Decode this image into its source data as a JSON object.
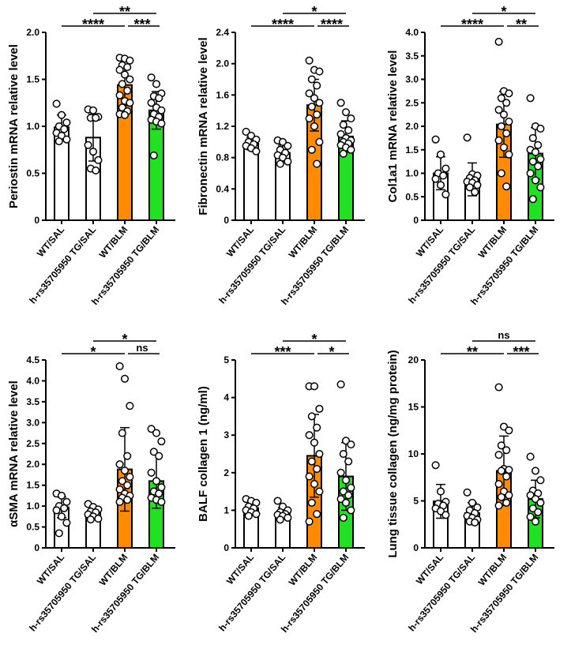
{
  "chart_data": [
    {
      "type": "bar",
      "ylabel": "Periostin mRNA relative level",
      "ylim": [
        0,
        2.0
      ],
      "ticks": [
        "0",
        "0.5",
        "1.0",
        "1.5",
        "2.0"
      ],
      "categories": [
        "WT/SAL",
        "h-rs35705950 TG/SAL",
        "WT/BLM",
        "h-rs35705950 TG/BLM"
      ],
      "means": [
        0.99,
        0.88,
        1.44,
        1.17
      ],
      "sd": [
        0.13,
        0.25,
        0.22,
        0.2
      ],
      "points": [
        [
          1.24,
          1.12,
          1.04,
          1.0,
          0.97,
          0.93,
          0.9,
          0.86,
          0.84
        ],
        [
          1.18,
          1.17,
          1.1,
          1.09,
          1.09,
          0.8,
          0.73,
          0.64,
          0.55,
          0.53
        ],
        [
          1.73,
          1.72,
          1.7,
          1.65,
          1.63,
          1.6,
          1.55,
          1.5,
          1.45,
          1.38,
          1.33,
          1.27,
          1.25,
          1.2,
          1.16,
          1.13,
          1.12
        ],
        [
          1.52,
          1.45,
          1.35,
          1.32,
          1.3,
          1.25,
          1.2,
          1.17,
          1.13,
          1.1,
          1.07,
          1.05,
          1.03,
          0.69
        ]
      ],
      "significance": [
        {
          "from": 0,
          "to": 2,
          "label": "****"
        },
        {
          "from": 2,
          "to": 3,
          "label": "***"
        },
        {
          "from": 1,
          "to": 3,
          "label": "**"
        }
      ]
    },
    {
      "type": "bar",
      "ylabel": "Fibronectin mRNA relative level",
      "ylim": [
        0,
        2.4
      ],
      "ticks": [
        "0",
        "0.4",
        "0.8",
        "1.2",
        "1.6",
        "2.0",
        "2.4"
      ],
      "categories": [
        "WT/SAL",
        "h-rs35705950 TG/SAL",
        "WT/BLM",
        "h-rs35705950 TG/BLM"
      ],
      "means": [
        0.98,
        0.86,
        1.47,
        1.07
      ],
      "sd": [
        0.08,
        0.1,
        0.33,
        0.2
      ],
      "points": [
        [
          1.13,
          1.08,
          1.03,
          1.0,
          0.97,
          0.95,
          0.92,
          0.88
        ],
        [
          1.02,
          1.0,
          0.95,
          0.9,
          0.86,
          0.83,
          0.8,
          0.75,
          0.72
        ],
        [
          2.04,
          1.92,
          1.9,
          1.8,
          1.72,
          1.62,
          1.56,
          1.5,
          1.45,
          1.35,
          1.3,
          1.2,
          1.0,
          0.9,
          0.72
        ],
        [
          1.5,
          1.38,
          1.3,
          1.22,
          1.15,
          1.1,
          1.05,
          1.02,
          1.0,
          0.98,
          0.96,
          0.93,
          0.9,
          0.85
        ]
      ],
      "significance": [
        {
          "from": 0,
          "to": 2,
          "label": "****"
        },
        {
          "from": 2,
          "to": 3,
          "label": "****"
        },
        {
          "from": 1,
          "to": 3,
          "label": "*"
        }
      ]
    },
    {
      "type": "bar",
      "ylabel": "Col1a1 mRNA relative level",
      "ylim": [
        0,
        4.0
      ],
      "ticks": [
        "0",
        "0.5",
        "1.0",
        "1.5",
        "2.0",
        "2.5",
        "3.0",
        "3.5",
        "4.0"
      ],
      "categories": [
        "WT/SAL",
        "h-rs35705950 TG/SAL",
        "WT/BLM",
        "h-rs35705950 TG/BLM"
      ],
      "means": [
        1.0,
        0.87,
        2.04,
        1.42
      ],
      "sd": [
        0.35,
        0.35,
        0.7,
        0.55
      ],
      "points": [
        [
          1.72,
          1.4,
          1.1,
          1.0,
          0.95,
          0.88,
          0.75,
          0.55
        ],
        [
          1.76,
          0.98,
          0.95,
          0.9,
          0.85,
          0.82,
          0.8,
          0.75,
          0.7,
          0.6
        ],
        [
          3.8,
          2.75,
          2.7,
          2.6,
          2.5,
          2.35,
          2.25,
          2.1,
          2.0,
          1.85,
          1.7,
          1.55,
          1.4,
          1.0,
          0.72
        ],
        [
          2.6,
          2.0,
          1.95,
          1.75,
          1.6,
          1.5,
          1.45,
          1.3,
          1.25,
          1.15,
          1.0,
          0.85,
          0.7,
          0.45
        ]
      ],
      "significance": [
        {
          "from": 0,
          "to": 2,
          "label": "****"
        },
        {
          "from": 2,
          "to": 3,
          "label": "**"
        },
        {
          "from": 1,
          "to": 3,
          "label": "*"
        }
      ]
    },
    {
      "type": "bar",
      "ylabel": "αSMA mRNA relative level",
      "ylim": [
        0,
        4.5
      ],
      "ticks": [
        "0",
        "0.5",
        "1.0",
        "1.5",
        "2.0",
        "2.5",
        "3.0",
        "3.5",
        "4.0",
        "4.5"
      ],
      "categories": [
        "WT/SAL",
        "h-rs35705950 TG/SAL",
        "WT/BLM",
        "h-rs35705950 TG/BLM"
      ],
      "means": [
        0.97,
        0.83,
        1.88,
        1.6
      ],
      "sd": [
        0.25,
        0.15,
        1.0,
        0.65
      ],
      "points": [
        [
          1.3,
          1.25,
          1.1,
          1.0,
          0.95,
          0.9,
          0.75,
          0.6,
          0.35
        ],
        [
          1.05,
          0.98,
          0.92,
          0.87,
          0.85,
          0.8,
          0.75,
          0.7,
          0.68
        ],
        [
          4.35,
          4.05,
          3.4,
          2.75,
          2.2,
          2.0,
          1.85,
          1.7,
          1.6,
          1.5,
          1.4,
          1.3,
          1.25,
          1.2,
          1.15,
          1.1
        ],
        [
          2.85,
          2.75,
          2.55,
          2.3,
          2.2,
          1.8,
          1.6,
          1.45,
          1.35,
          1.3,
          1.2,
          1.15,
          1.1
        ]
      ],
      "significance": [
        {
          "from": 0,
          "to": 2,
          "label": "*"
        },
        {
          "from": 2,
          "to": 3,
          "label": "ns"
        },
        {
          "from": 1,
          "to": 3,
          "label": "*"
        }
      ]
    },
    {
      "type": "bar",
      "ylabel": "BALF collagen 1 (ng/ml)",
      "ylim": [
        0,
        5
      ],
      "ticks": [
        "0",
        "1",
        "2",
        "3",
        "4",
        "5"
      ],
      "categories": [
        "WT/SAL",
        "h-rs35705950 TG/SAL",
        "WT/BLM",
        "h-rs35705950 TG/BLM"
      ],
      "means": [
        1.06,
        0.92,
        2.45,
        1.9
      ],
      "sd": [
        0.15,
        0.15,
        1.1,
        0.9
      ],
      "points": [
        [
          1.3,
          1.25,
          1.2,
          1.1,
          1.05,
          1.0,
          0.95,
          0.9,
          0.85
        ],
        [
          1.25,
          1.1,
          1.0,
          0.95,
          0.9,
          0.88,
          0.85,
          0.8,
          0.75
        ],
        [
          4.3,
          4.3,
          3.7,
          3.5,
          3.2,
          3.0,
          2.8,
          2.5,
          2.3,
          2.1,
          1.9,
          1.7,
          1.5,
          1.2,
          0.9,
          0.7
        ],
        [
          4.35,
          2.85,
          2.75,
          2.5,
          2.3,
          2.0,
          1.8,
          1.6,
          1.5,
          1.4,
          1.3,
          1.2,
          1.0,
          0.8
        ]
      ],
      "significance": [
        {
          "from": 0,
          "to": 2,
          "label": "***"
        },
        {
          "from": 2,
          "to": 3,
          "label": "*"
        },
        {
          "from": 1,
          "to": 3,
          "label": "*"
        }
      ]
    },
    {
      "type": "bar",
      "ylabel": "Lung tissue collagen (ng/mg protein)",
      "ylim": [
        0,
        20
      ],
      "ticks": [
        "0",
        "5",
        "10",
        "15",
        "20"
      ],
      "categories": [
        "WT/SAL",
        "h-rs35705950 TG/SAL",
        "WT/BLM",
        "h-rs35705950 TG/BLM"
      ],
      "means": [
        4.95,
        3.7,
        8.2,
        5.2
      ],
      "sd": [
        1.8,
        1.1,
        3.7,
        2.0
      ],
      "points": [
        [
          8.8,
          6.0,
          4.9,
          4.7,
          4.5,
          4.2,
          3.9,
          3.5
        ],
        [
          5.9,
          4.8,
          4.3,
          4.0,
          3.7,
          3.4,
          3.2,
          3.0,
          2.8,
          2.7
        ],
        [
          17.1,
          12.9,
          12.5,
          10.9,
          10.4,
          9.9,
          8.4,
          8.3,
          8.2,
          7.6,
          6.8,
          6.0,
          5.6,
          5.4,
          4.8,
          4.5
        ],
        [
          9.7,
          8.2,
          7.2,
          6.1,
          5.8,
          5.6,
          5.2,
          4.8,
          4.2,
          3.8,
          3.3,
          2.8
        ]
      ],
      "significance": [
        {
          "from": 0,
          "to": 2,
          "label": "**"
        },
        {
          "from": 2,
          "to": 3,
          "label": "***"
        },
        {
          "from": 1,
          "to": 3,
          "label": "ns"
        }
      ]
    }
  ],
  "colors": {
    "bars": [
      "#ffffff",
      "#ffffff",
      "#ff8c00",
      "#22e022"
    ],
    "outline": "#000000"
  }
}
